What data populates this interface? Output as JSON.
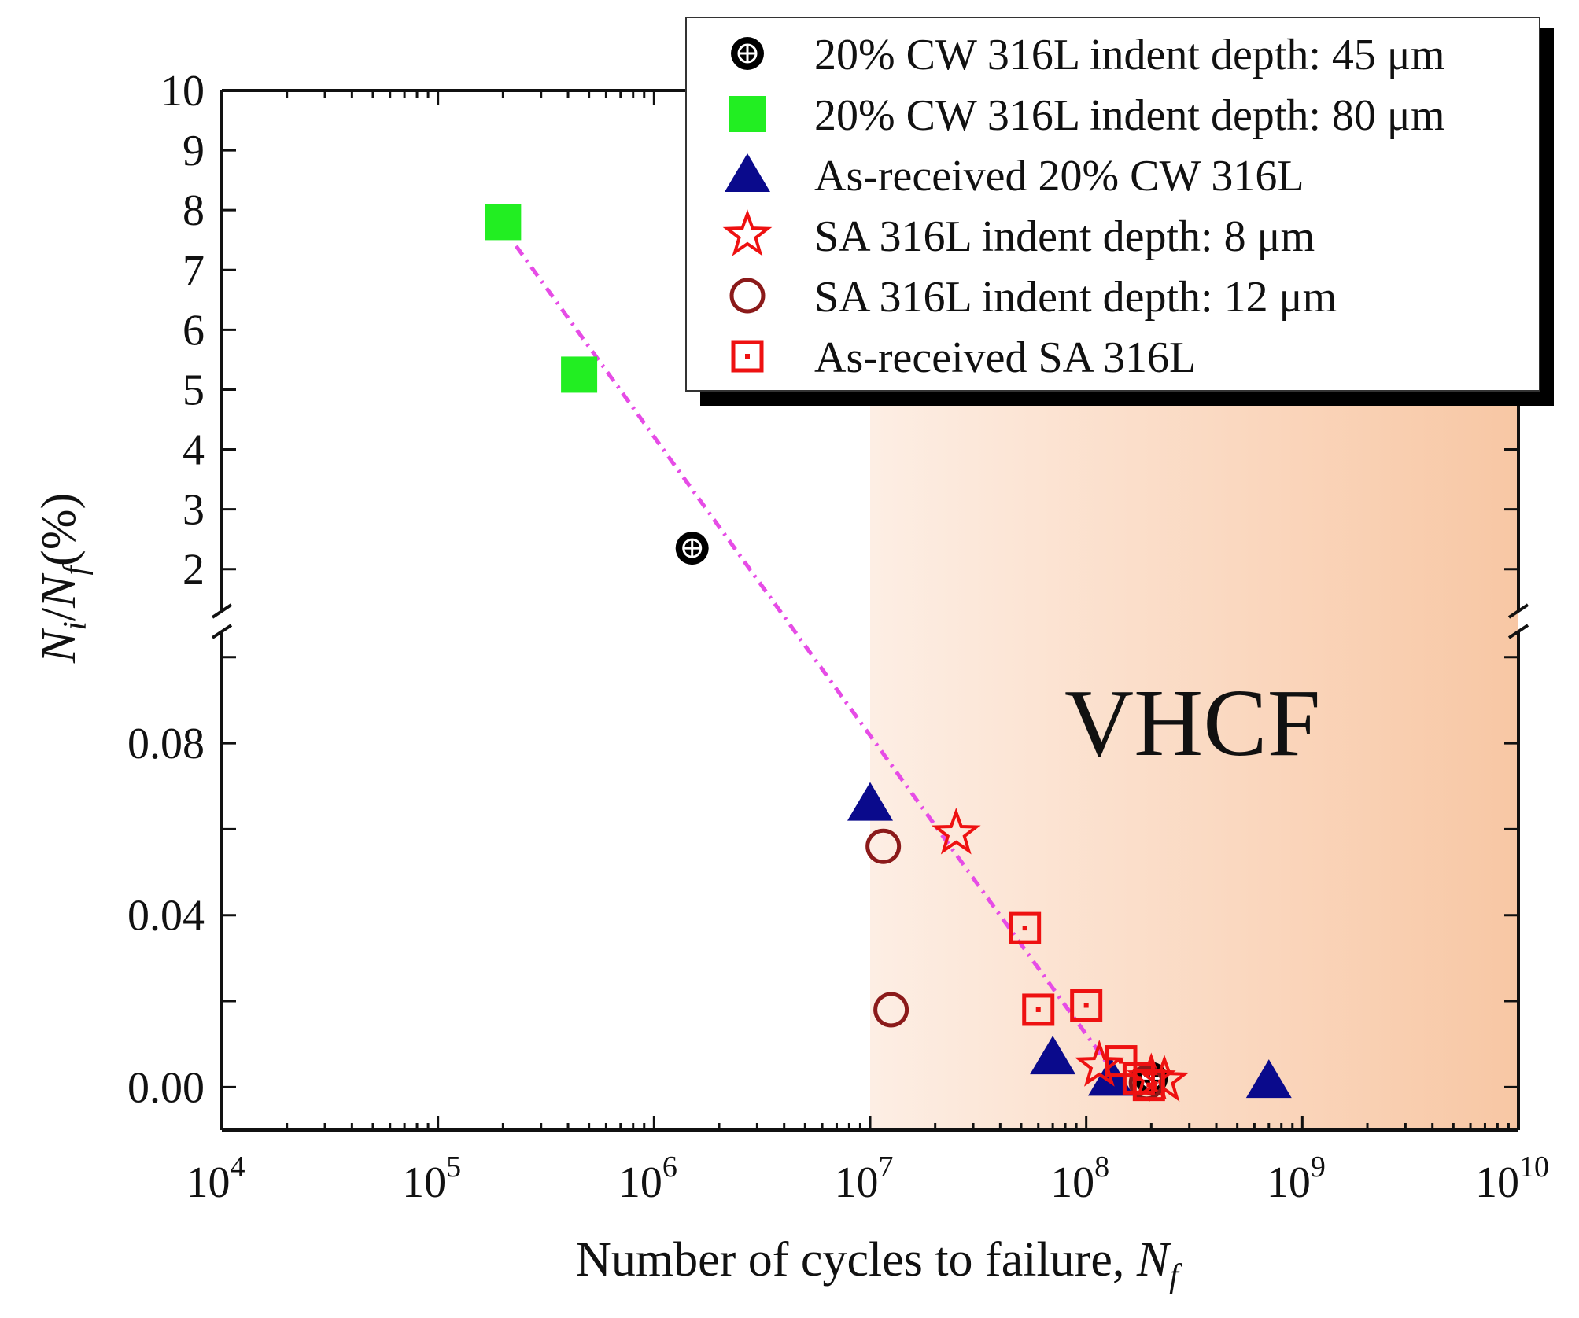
{
  "chart_data": {
    "type": "scatter",
    "x_scale": "log",
    "x_range": [
      10000,
      10000000000
    ],
    "x_tick_exponents": [
      4,
      5,
      6,
      7,
      8,
      9,
      10
    ],
    "x_tick_base": "10",
    "y_axis_break": true,
    "y_upper_range": [
      1.3,
      10
    ],
    "y_upper_ticks": [
      "2",
      "3",
      "4",
      "5",
      "6",
      "7",
      "8",
      "9",
      "10"
    ],
    "y_lower_range": [
      -0.01,
      0.106
    ],
    "y_lower_ticks": [
      {
        "value": 0.0,
        "label": "0.00"
      },
      {
        "value": 0.04,
        "label": "0.04"
      },
      {
        "value": 0.08,
        "label": "0.08"
      }
    ],
    "xlabel": "Number of cycles to failure, ",
    "xlabel_var": "N",
    "xlabel_sub": "f",
    "ylabel_n": "N",
    "ylabel_i": "i",
    "ylabel_slash": "/",
    "ylabel_f": "f",
    "ylabel_pct": "(%)",
    "region": {
      "label": "VHCF",
      "from": 10000000,
      "to": 10000000000,
      "color_start": "#fdeee4",
      "color_end": "#f8c7a4"
    },
    "trend_line": {
      "from": [
        230000,
        7.4
      ],
      "to": [
        150000000,
        0.0
      ],
      "color": "#e64ce6"
    },
    "legend_position": "top-right",
    "series": [
      {
        "name": "20% CW 316L indent depth: 45 μm",
        "marker": "circle-cross",
        "color": "#000000",
        "points": [
          [
            1500000,
            2.35
          ],
          [
            200000000,
            0.002
          ]
        ]
      },
      {
        "name": "20% CW 316L indent depth: 80 μm",
        "marker": "square-filled",
        "color": "#22ee22",
        "points": [
          [
            200000,
            7.8
          ],
          [
            450000,
            5.25
          ]
        ]
      },
      {
        "name": "As-received 20% CW 316L",
        "marker": "triangle-filled",
        "color": "#0a0a8c",
        "points": [
          [
            10000000,
            0.066
          ],
          [
            70000000,
            0.007
          ],
          [
            130000000,
            0.002
          ],
          [
            700000000,
            0.0015
          ]
        ]
      },
      {
        "name": "SA 316L  indent depth: 8 μm",
        "marker": "star-open",
        "color": "#ee1111",
        "points": [
          [
            25000000,
            0.059
          ],
          [
            115000000,
            0.005
          ],
          [
            200000000,
            0.002
          ],
          [
            230000000,
            0.0015
          ]
        ]
      },
      {
        "name": "SA 316L  indent depth: 12 μm",
        "marker": "circle-open",
        "color": "#8b1a1a",
        "points": [
          [
            11500000,
            0.056
          ],
          [
            12500000,
            0.018
          ],
          [
            190000000,
            0.001
          ]
        ]
      },
      {
        "name": "As-received SA 316L",
        "marker": "square-dot",
        "color": "#ee1111",
        "points": [
          [
            52000000,
            0.037
          ],
          [
            60000000,
            0.018
          ],
          [
            100000000,
            0.019
          ],
          [
            145000000,
            0.006
          ],
          [
            175000000,
            0.002
          ],
          [
            195000000,
            0.0005
          ]
        ]
      }
    ]
  }
}
